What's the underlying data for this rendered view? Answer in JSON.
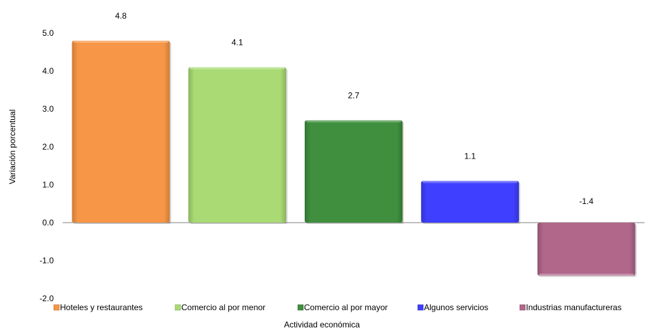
{
  "chart_data": {
    "type": "bar",
    "title": "",
    "xlabel": "Actividad económica",
    "ylabel": "Variación porcentual",
    "ylim": [
      -2.0,
      5.0
    ],
    "yticks": [
      -2.0,
      -1.0,
      0.0,
      1.0,
      2.0,
      3.0,
      4.0,
      5.0
    ],
    "ytick_labels": [
      "-2.0",
      "-1.0",
      "0.0",
      "1.0",
      "2.0",
      "3.0",
      "4.0",
      "5.0"
    ],
    "categories": [
      "Hoteles y restaurantes",
      "Comercio al por menor",
      "Comercio al por mayor",
      "Algunos servicios",
      "Industrias manufactureras"
    ],
    "values": [
      4.8,
      4.1,
      2.7,
      1.1,
      -1.4
    ],
    "value_labels": [
      "4.8",
      "4.1",
      "2.7",
      "1.1",
      "-1.4"
    ],
    "colors": [
      "#F79646",
      "#A9DA74",
      "#3F8F3F",
      "#3F3FFF",
      "#B0678A"
    ],
    "grid": false,
    "legend": "bottom"
  }
}
